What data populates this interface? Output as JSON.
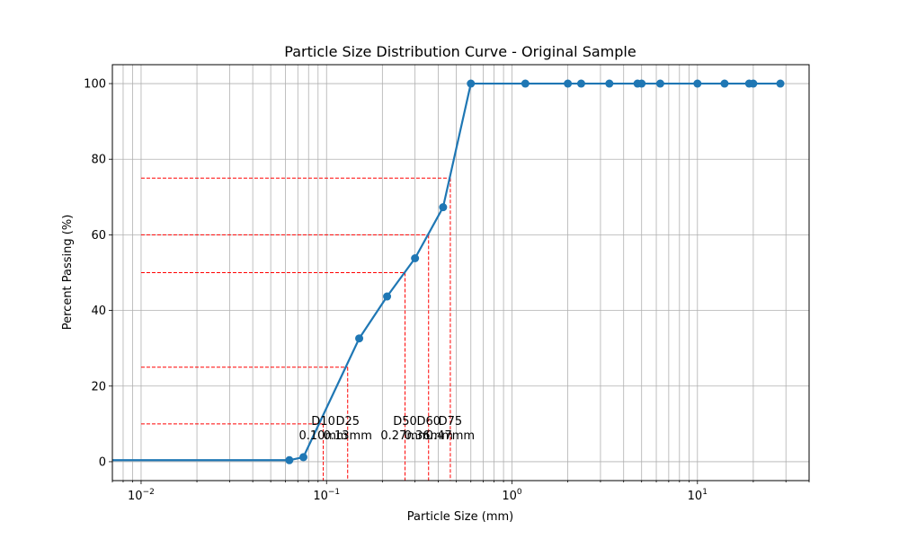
{
  "chart_data": {
    "type": "line",
    "title": "Particle Size Distribution Curve - Original Sample",
    "xlabel": "Particle Size (mm)",
    "ylabel": "Percent Passing (%)",
    "x_scale": "log",
    "xlim": [
      0.007,
      40
    ],
    "ylim": [
      -5,
      105
    ],
    "grid": true,
    "grid_minor": true,
    "series_color": "#1f77b4",
    "reference_color": "#ff0000",
    "x_ticks": [
      {
        "value": 0.01,
        "base": "10",
        "exp": "−2"
      },
      {
        "value": 0.1,
        "base": "10",
        "exp": "−1"
      },
      {
        "value": 1,
        "base": "10",
        "exp": "0"
      },
      {
        "value": 10,
        "base": "10",
        "exp": "1"
      }
    ],
    "y_ticks": [
      0,
      20,
      40,
      60,
      80,
      100
    ],
    "series": [
      {
        "line_start_x": 0.001,
        "x": [
          0.063,
          0.075,
          0.15,
          0.212,
          0.3,
          0.425,
          0.6,
          1.18,
          2.0,
          2.36,
          3.35,
          4.75,
          5.0,
          6.3,
          10.0,
          14.0,
          19.0,
          20.0,
          28.0
        ],
        "y": [
          0.4,
          1.2,
          32.6,
          43.7,
          53.8,
          67.3,
          100,
          100,
          100,
          100,
          100,
          100,
          100,
          100,
          100,
          100,
          100,
          100,
          100
        ]
      }
    ],
    "reference_lines": [
      {
        "name": "D10",
        "percent": 10,
        "size": 0.096,
        "value_text": "0.10mm"
      },
      {
        "name": "D25",
        "percent": 25,
        "size": 0.13,
        "value_text": "0.13mm"
      },
      {
        "name": "D50",
        "percent": 50,
        "size": 0.265,
        "value_text": "0.27mm"
      },
      {
        "name": "D60",
        "percent": 60,
        "size": 0.355,
        "value_text": "0.36mm"
      },
      {
        "name": "D75",
        "percent": 75,
        "size": 0.465,
        "value_text": "0.47mm"
      }
    ],
    "reference_line_start_x": 0.01
  }
}
